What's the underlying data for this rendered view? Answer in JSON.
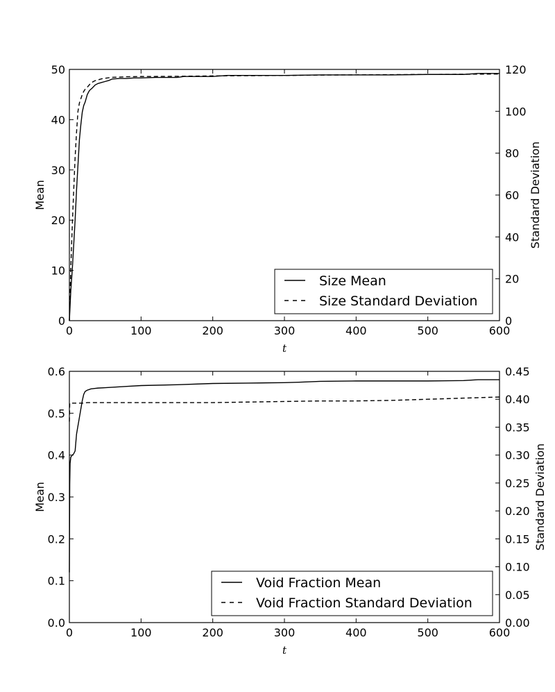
{
  "chart_data": [
    {
      "type": "line",
      "panel": "top",
      "xlabel": "t",
      "ylabel": "Mean",
      "y2label": "Standard Deviation",
      "xlim": [
        0,
        600
      ],
      "ylim": [
        0,
        50
      ],
      "y2lim": [
        0,
        120
      ],
      "xticks": [
        0,
        100,
        200,
        300,
        400,
        500,
        600
      ],
      "yticks": [
        0,
        10,
        20,
        30,
        40,
        50
      ],
      "y2ticks": [
        0,
        20,
        40,
        60,
        80,
        100,
        120
      ],
      "grid": false,
      "legend_position": "lower-right",
      "series": [
        {
          "name": "Size Mean",
          "axis": "left",
          "style": "solid",
          "color": "#000000",
          "x": [
            0,
            2,
            4,
            6,
            8,
            10,
            12,
            14,
            16,
            18,
            20,
            22,
            25,
            28,
            32,
            36,
            40,
            45,
            50,
            55,
            60,
            70,
            80,
            90,
            100,
            120,
            150,
            160,
            200,
            220,
            250,
            300,
            350,
            400,
            450,
            500,
            550,
            570,
            600
          ],
          "y": [
            0,
            6,
            10,
            15,
            20,
            26,
            31,
            36,
            39,
            41.5,
            42.8,
            43.5,
            45,
            45.8,
            46.3,
            46.9,
            47.2,
            47.4,
            47.6,
            47.8,
            48.1,
            48.2,
            48.2,
            48.3,
            48.3,
            48.4,
            48.4,
            48.6,
            48.6,
            48.8,
            48.8,
            48.8,
            48.9,
            48.9,
            48.9,
            49,
            49,
            49.2,
            49.2
          ]
        },
        {
          "name": "Size Standard Deviation",
          "axis": "right",
          "style": "dashed",
          "color": "#000000",
          "x": [
            0,
            2,
            4,
            6,
            8,
            10,
            12,
            14,
            16,
            18,
            20,
            22,
            25,
            30,
            35,
            40,
            45,
            50,
            60,
            80,
            100,
            150,
            200,
            250,
            300,
            350,
            400,
            450,
            500,
            550,
            600
          ],
          "y": [
            0,
            25,
            45,
            62,
            78,
            90,
            100,
            104,
            106,
            108,
            109.5,
            110.5,
            111.5,
            113.5,
            114.5,
            115,
            115.5,
            115.8,
            116.2,
            116.5,
            116.6,
            116.7,
            116.9,
            117,
            117.1,
            117.3,
            117.4,
            117.5,
            117.6,
            117.7,
            117.8
          ]
        }
      ]
    },
    {
      "type": "line",
      "panel": "bottom",
      "xlabel": "t",
      "ylabel": "Mean",
      "y2label": "Standard Deviation",
      "xlim": [
        0,
        600
      ],
      "ylim": [
        0,
        0.6
      ],
      "y2lim": [
        0,
        0.45
      ],
      "xticks": [
        0,
        100,
        200,
        300,
        400,
        500,
        600
      ],
      "yticks": [
        0.0,
        0.1,
        0.2,
        0.3,
        0.4,
        0.5,
        0.6
      ],
      "yticks_labels": [
        "0.0",
        "0.1",
        "0.2",
        "0.3",
        "0.4",
        "0.5",
        "0.6"
      ],
      "y2ticks": [
        0,
        0.05,
        0.1,
        0.15,
        0.2,
        0.25,
        0.3,
        0.35,
        0.4,
        0.45
      ],
      "y2ticks_labels": [
        "0.00",
        "0.05",
        "0.10",
        "0.15",
        "0.20",
        "0.25",
        "0.30",
        "0.35",
        "0.40",
        "0.45"
      ],
      "grid": false,
      "legend_position": "lower-right",
      "series": [
        {
          "name": "Void Fraction Mean",
          "axis": "left",
          "style": "solid",
          "color": "#000000",
          "x": [
            0,
            0.5,
            1,
            2,
            4,
            6,
            8,
            10,
            12,
            14,
            16,
            18,
            20,
            22,
            25,
            30,
            35,
            40,
            50,
            60,
            80,
            100,
            150,
            200,
            250,
            300,
            320,
            350,
            400,
            450,
            500,
            550,
            570,
            600
          ],
          "y": [
            0.12,
            0.33,
            0.38,
            0.395,
            0.4,
            0.403,
            0.41,
            0.45,
            0.47,
            0.49,
            0.51,
            0.53,
            0.545,
            0.552,
            0.555,
            0.558,
            0.559,
            0.56,
            0.561,
            0.562,
            0.564,
            0.566,
            0.568,
            0.571,
            0.572,
            0.573,
            0.574,
            0.576,
            0.577,
            0.577,
            0.577,
            0.578,
            0.58,
            0.58
          ]
        },
        {
          "name": "Void Fraction Standard Deviation",
          "axis": "right",
          "style": "dashed",
          "color": "#000000",
          "x": [
            0,
            0.5,
            1,
            5,
            20,
            25,
            50,
            100,
            200,
            250,
            300,
            350,
            400,
            450,
            500,
            550,
            600
          ],
          "y": [
            0.36,
            0.393,
            0.393,
            0.393,
            0.393,
            0.394,
            0.394,
            0.394,
            0.394,
            0.395,
            0.396,
            0.397,
            0.397,
            0.398,
            0.4,
            0.402,
            0.404
          ]
        }
      ]
    }
  ]
}
